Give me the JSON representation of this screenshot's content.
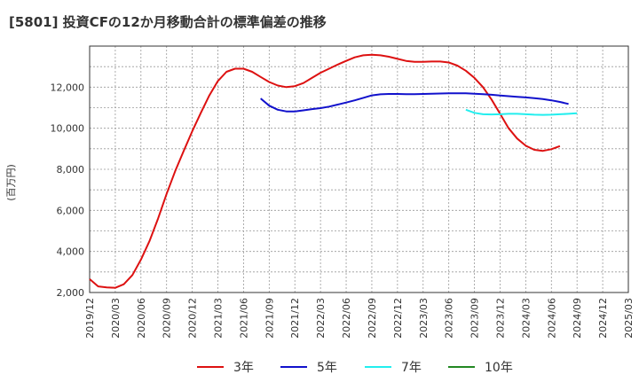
{
  "chart_data": {
    "type": "line",
    "title": "[5801]  投資CFの12か月移動合計の標準偏差の推移",
    "xlabel": "",
    "ylabel": "(百万円)",
    "ylim": [
      2000,
      14000
    ],
    "yticks": [
      2000,
      4000,
      6000,
      8000,
      10000,
      12000
    ],
    "ytick_labels": [
      "2,000",
      "4,000",
      "6,000",
      "8,000",
      "10,000",
      "12,000"
    ],
    "xtick_labels": [
      "2019/12",
      "2020/03",
      "2020/06",
      "2020/09",
      "2020/12",
      "2021/03",
      "2021/06",
      "2021/09",
      "2021/12",
      "2022/03",
      "2022/06",
      "2022/09",
      "2022/12",
      "2023/03",
      "2023/06",
      "2023/09",
      "2023/12",
      "2024/03",
      "2024/06",
      "2024/09",
      "2024/12",
      "2025/03"
    ],
    "grid": true,
    "legend_position": "bottom",
    "series": [
      {
        "name": "3年",
        "color": "#dd1111",
        "start_index": 0,
        "values": [
          2650,
          2300,
          2250,
          2230,
          2400,
          2850,
          3600,
          4500,
          5600,
          6800,
          7900,
          8900,
          9850,
          10750,
          11600,
          12300,
          12750,
          12900,
          12900,
          12750,
          12500,
          12250,
          12080,
          12000,
          12050,
          12200,
          12450,
          12700,
          12900,
          13100,
          13280,
          13450,
          13550,
          13580,
          13550,
          13480,
          13380,
          13280,
          13230,
          13230,
          13250,
          13250,
          13200,
          13050,
          12800,
          12450,
          12000,
          11400,
          10700,
          10000,
          9500,
          9150,
          8950,
          8900,
          8980,
          9130
        ]
      },
      {
        "name": "5年",
        "color": "#1111cc",
        "start_index": 20,
        "values": [
          11450,
          11100,
          10900,
          10820,
          10820,
          10870,
          10930,
          10980,
          11050,
          11150,
          11250,
          11360,
          11480,
          11600,
          11650,
          11670,
          11670,
          11660,
          11660,
          11670,
          11680,
          11690,
          11700,
          11700,
          11700,
          11680,
          11660,
          11630,
          11590,
          11560,
          11530,
          11500,
          11460,
          11420,
          11360,
          11280,
          11180
        ]
      },
      {
        "name": "7年",
        "color": "#22eeee",
        "start_index": 44,
        "values": [
          10900,
          10750,
          10680,
          10670,
          10680,
          10700,
          10700,
          10680,
          10660,
          10650,
          10660,
          10680,
          10700,
          10730
        ]
      },
      {
        "name": "10年",
        "color": "#228822",
        "start_index": 0,
        "values": []
      }
    ]
  }
}
